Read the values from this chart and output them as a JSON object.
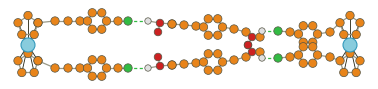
{
  "bg_color": "#ffffff",
  "orange": "#E8841A",
  "red": "#CC2222",
  "green": "#33BB44",
  "blue_metal": "#88CCDD",
  "white_h": "#E0E0E0",
  "bond_color": "#999988",
  "bond_dark": "#222211",
  "hbond_color": "#33BB44",
  "figsize": [
    3.78,
    0.89
  ],
  "dpi": 100,
  "xlim": [
    0,
    378
  ],
  "ylim": [
    0,
    89
  ],
  "ro": 4.2,
  "rr": 3.8,
  "rg": 4.2,
  "rw": 3.2,
  "rm": 7.0,
  "cp_r": 10.5,
  "py_r": 9.5
}
